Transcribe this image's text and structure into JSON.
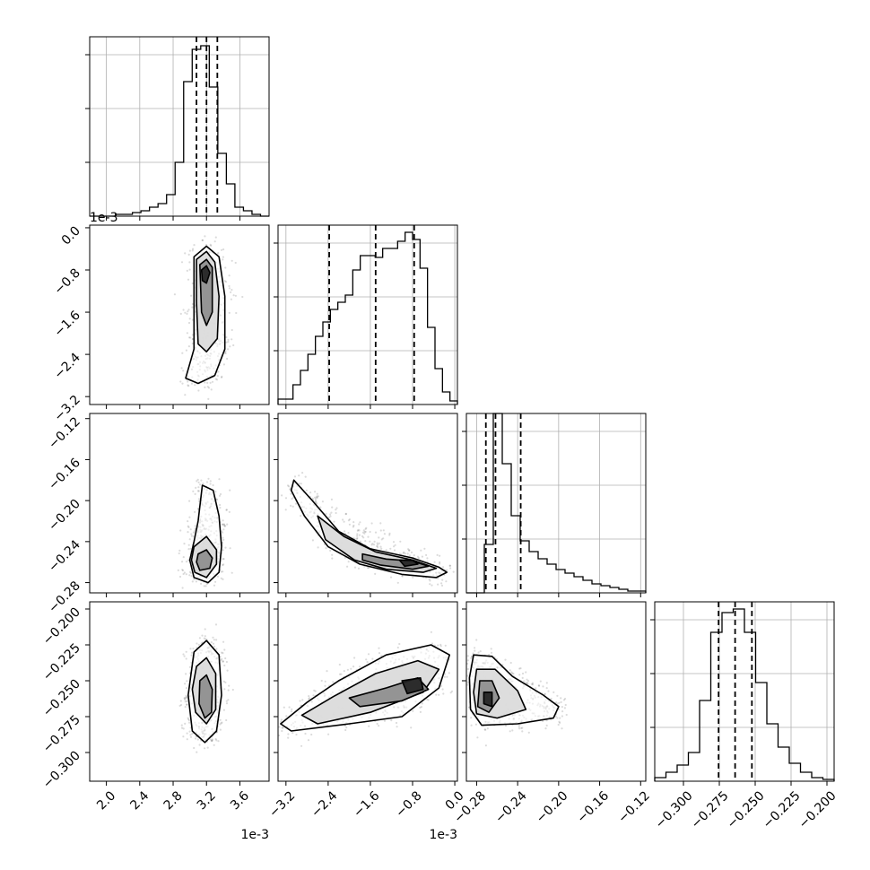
{
  "chart_data": {
    "type": "corner",
    "params": [
      {
        "range": [
          1.8,
          3.95
        ],
        "ticks": [
          2.0,
          2.4,
          2.8,
          3.2,
          3.6
        ],
        "tick_labels": [
          "2.0",
          "2.4",
          "2.8",
          "3.2",
          "3.6"
        ],
        "offset_label": "1e-3"
      },
      {
        "range": [
          -3.35,
          0.05
        ],
        "ticks": [
          -3.2,
          -2.4,
          -1.6,
          -0.8,
          0.0
        ],
        "tick_labels": [
          "−3.2",
          "−2.4",
          "−1.6",
          "−0.8",
          "0.0"
        ],
        "offset_label": "1e-3"
      },
      {
        "range": [
          -0.29,
          -0.115
        ],
        "ticks": [
          -0.28,
          -0.24,
          -0.2,
          -0.16,
          -0.12
        ],
        "tick_labels": [
          "−0.28",
          "−0.24",
          "−0.20",
          "−0.16",
          "−0.12"
        ],
        "offset_label": ""
      },
      {
        "range": [
          -0.32,
          -0.195
        ],
        "ticks": [
          -0.3,
          -0.275,
          -0.25,
          -0.225,
          -0.2
        ],
        "tick_labels": [
          "−0.300",
          "−0.275",
          "−0.250",
          "−0.225",
          "−0.200"
        ],
        "offset_label": ""
      }
    ],
    "hists": [
      [
        0,
        0,
        0,
        1,
        1,
        2,
        3,
        5,
        7,
        12,
        30,
        75,
        93,
        95,
        72,
        35,
        18,
        5,
        3,
        1,
        0
      ],
      [
        3,
        3,
        11,
        19,
        28,
        38,
        46,
        53,
        57,
        61,
        75,
        83,
        83,
        82,
        87,
        87,
        91,
        96,
        92,
        76,
        43,
        20,
        7,
        2
      ],
      [
        0,
        0,
        27,
        100,
        72,
        43,
        29,
        23,
        19,
        16,
        13,
        11,
        9,
        7,
        5,
        4,
        3,
        2,
        1,
        1
      ],
      [
        2,
        5,
        9,
        16,
        45,
        83,
        94,
        96,
        83,
        55,
        32,
        19,
        10,
        5,
        2,
        1
      ]
    ],
    "quantiles": [
      [
        3.08,
        3.2,
        3.33
      ],
      [
        -2.38,
        -1.5,
        -0.77
      ],
      [
        -0.271,
        -0.2616,
        -0.237
      ],
      [
        -0.2755,
        -0.264,
        -0.2523
      ]
    ],
    "y_tick_fractions": [
      0.9,
      0.6,
      0.3
    ],
    "contours": {
      "1-0": [
        {
          "level": "outer",
          "points": [
            [
              3.05,
              -0.55
            ],
            [
              3.2,
              -0.35
            ],
            [
              3.35,
              -0.55
            ],
            [
              3.42,
              -1.3
            ],
            [
              3.42,
              -2.3
            ],
            [
              3.3,
              -2.8
            ],
            [
              3.1,
              -2.95
            ],
            [
              2.95,
              -2.85
            ],
            [
              3.05,
              -2.3
            ],
            [
              3.05,
              -1.5
            ]
          ]
        },
        {
          "level": "mid",
          "points": [
            [
              3.08,
              -0.6
            ],
            [
              3.2,
              -0.45
            ],
            [
              3.3,
              -0.65
            ],
            [
              3.35,
              -1.3
            ],
            [
              3.33,
              -2.1
            ],
            [
              3.2,
              -2.35
            ],
            [
              3.1,
              -2.2
            ],
            [
              3.08,
              -1.4
            ]
          ]
        },
        {
          "level": "inner",
          "points": [
            [
              3.12,
              -0.7
            ],
            [
              3.2,
              -0.6
            ],
            [
              3.27,
              -0.75
            ],
            [
              3.27,
              -1.6
            ],
            [
              3.2,
              -1.85
            ],
            [
              3.14,
              -1.6
            ]
          ]
        },
        {
          "level": "core",
          "points": [
            [
              3.14,
              -0.8
            ],
            [
              3.2,
              -0.72
            ],
            [
              3.24,
              -0.85
            ],
            [
              3.2,
              -1.05
            ],
            [
              3.15,
              -1.0
            ]
          ]
        }
      ],
      "2-0": [
        {
          "level": "outer",
          "points": [
            [
              3.15,
              -0.185
            ],
            [
              3.28,
              -0.19
            ],
            [
              3.35,
              -0.215
            ],
            [
              3.38,
              -0.245
            ],
            [
              3.35,
              -0.27
            ],
            [
              3.22,
              -0.28
            ],
            [
              3.05,
              -0.275
            ],
            [
              3.0,
              -0.258
            ],
            [
              3.05,
              -0.24
            ],
            [
              3.1,
              -0.22
            ]
          ]
        },
        {
          "level": "mid",
          "points": [
            [
              3.05,
              -0.245
            ],
            [
              3.2,
              -0.235
            ],
            [
              3.32,
              -0.248
            ],
            [
              3.32,
              -0.262
            ],
            [
              3.2,
              -0.275
            ],
            [
              3.06,
              -0.27
            ],
            [
              3.02,
              -0.258
            ]
          ]
        },
        {
          "level": "inner",
          "points": [
            [
              3.1,
              -0.252
            ],
            [
              3.2,
              -0.248
            ],
            [
              3.27,
              -0.256
            ],
            [
              3.24,
              -0.266
            ],
            [
              3.12,
              -0.268
            ],
            [
              3.08,
              -0.26
            ]
          ]
        }
      ],
      "2-1": [
        {
          "level": "outer",
          "points": [
            [
              -3.05,
              -0.18
            ],
            [
              -2.7,
              -0.2
            ],
            [
              -2.2,
              -0.23
            ],
            [
              -1.6,
              -0.247
            ],
            [
              -0.8,
              -0.256
            ],
            [
              -0.3,
              -0.265
            ],
            [
              -0.15,
              -0.27
            ],
            [
              -0.35,
              -0.275
            ],
            [
              -1.0,
              -0.272
            ],
            [
              -1.8,
              -0.262
            ],
            [
              -2.4,
              -0.245
            ],
            [
              -2.85,
              -0.215
            ],
            [
              -3.1,
              -0.19
            ]
          ]
        },
        {
          "level": "mid",
          "points": [
            [
              -2.6,
              -0.215
            ],
            [
              -2.1,
              -0.235
            ],
            [
              -1.5,
              -0.25
            ],
            [
              -0.8,
              -0.258
            ],
            [
              -0.35,
              -0.266
            ],
            [
              -0.6,
              -0.27
            ],
            [
              -1.3,
              -0.267
            ],
            [
              -1.9,
              -0.258
            ],
            [
              -2.45,
              -0.238
            ]
          ]
        },
        {
          "level": "inner",
          "points": [
            [
              -1.75,
              -0.252
            ],
            [
              -1.3,
              -0.257
            ],
            [
              -0.8,
              -0.259
            ],
            [
              -0.5,
              -0.264
            ],
            [
              -0.8,
              -0.267
            ],
            [
              -1.4,
              -0.263
            ],
            [
              -1.75,
              -0.258
            ]
          ]
        },
        {
          "level": "core",
          "points": [
            [
              -1.05,
              -0.258
            ],
            [
              -0.8,
              -0.258
            ],
            [
              -0.7,
              -0.262
            ],
            [
              -0.95,
              -0.264
            ]
          ]
        }
      ],
      "3-0": [
        {
          "level": "outer",
          "points": [
            [
              3.05,
              -0.23
            ],
            [
              3.2,
              -0.222
            ],
            [
              3.35,
              -0.232
            ],
            [
              3.38,
              -0.26
            ],
            [
              3.32,
              -0.285
            ],
            [
              3.18,
              -0.293
            ],
            [
              3.03,
              -0.285
            ],
            [
              2.98,
              -0.26
            ]
          ]
        },
        {
          "level": "mid",
          "points": [
            [
              3.08,
              -0.24
            ],
            [
              3.2,
              -0.234
            ],
            [
              3.31,
              -0.245
            ],
            [
              3.31,
              -0.27
            ],
            [
              3.2,
              -0.28
            ],
            [
              3.07,
              -0.272
            ],
            [
              3.03,
              -0.256
            ]
          ]
        },
        {
          "level": "inner",
          "points": [
            [
              3.12,
              -0.25
            ],
            [
              3.2,
              -0.246
            ],
            [
              3.27,
              -0.256
            ],
            [
              3.26,
              -0.272
            ],
            [
              3.18,
              -0.276
            ],
            [
              3.11,
              -0.266
            ]
          ]
        }
      ],
      "3-1": [
        {
          "level": "outer",
          "points": [
            [
              -3.3,
              -0.28
            ],
            [
              -2.8,
              -0.265
            ],
            [
              -2.2,
              -0.25
            ],
            [
              -1.3,
              -0.232
            ],
            [
              -0.45,
              -0.225
            ],
            [
              -0.1,
              -0.232
            ],
            [
              -0.3,
              -0.255
            ],
            [
              -1.0,
              -0.275
            ],
            [
              -2.0,
              -0.28
            ],
            [
              -3.1,
              -0.285
            ]
          ]
        },
        {
          "level": "mid",
          "points": [
            [
              -2.9,
              -0.274
            ],
            [
              -2.3,
              -0.261
            ],
            [
              -1.5,
              -0.245
            ],
            [
              -0.7,
              -0.236
            ],
            [
              -0.3,
              -0.242
            ],
            [
              -0.6,
              -0.258
            ],
            [
              -1.6,
              -0.272
            ],
            [
              -2.6,
              -0.28
            ]
          ]
        },
        {
          "level": "inner",
          "points": [
            [
              -2.0,
              -0.262
            ],
            [
              -1.3,
              -0.255
            ],
            [
              -0.7,
              -0.248
            ],
            [
              -0.5,
              -0.256
            ],
            [
              -1.0,
              -0.264
            ],
            [
              -1.8,
              -0.268
            ]
          ]
        },
        {
          "level": "core",
          "points": [
            [
              -1.0,
              -0.25
            ],
            [
              -0.65,
              -0.248
            ],
            [
              -0.6,
              -0.256
            ],
            [
              -0.9,
              -0.259
            ]
          ]
        }
      ],
      "3-2": [
        {
          "level": "outer",
          "points": [
            [
              -0.283,
              -0.232
            ],
            [
              -0.265,
              -0.233
            ],
            [
              -0.245,
              -0.247
            ],
            [
              -0.215,
              -0.26
            ],
            [
              -0.2,
              -0.268
            ],
            [
              -0.205,
              -0.276
            ],
            [
              -0.24,
              -0.28
            ],
            [
              -0.275,
              -0.281
            ],
            [
              -0.286,
              -0.27
            ],
            [
              -0.287,
              -0.248
            ]
          ]
        },
        {
          "level": "mid",
          "points": [
            [
              -0.28,
              -0.242
            ],
            [
              -0.262,
              -0.242
            ],
            [
              -0.24,
              -0.257
            ],
            [
              -0.232,
              -0.27
            ],
            [
              -0.26,
              -0.276
            ],
            [
              -0.28,
              -0.273
            ],
            [
              -0.283,
              -0.258
            ]
          ]
        },
        {
          "level": "inner",
          "points": [
            [
              -0.277,
              -0.25
            ],
            [
              -0.265,
              -0.25
            ],
            [
              -0.258,
              -0.262
            ],
            [
              -0.268,
              -0.272
            ],
            [
              -0.279,
              -0.268
            ]
          ]
        },
        {
          "level": "core",
          "points": [
            [
              -0.273,
              -0.258
            ],
            [
              -0.265,
              -0.258
            ],
            [
              -0.265,
              -0.268
            ],
            [
              -0.273,
              -0.266
            ]
          ]
        }
      ]
    }
  }
}
